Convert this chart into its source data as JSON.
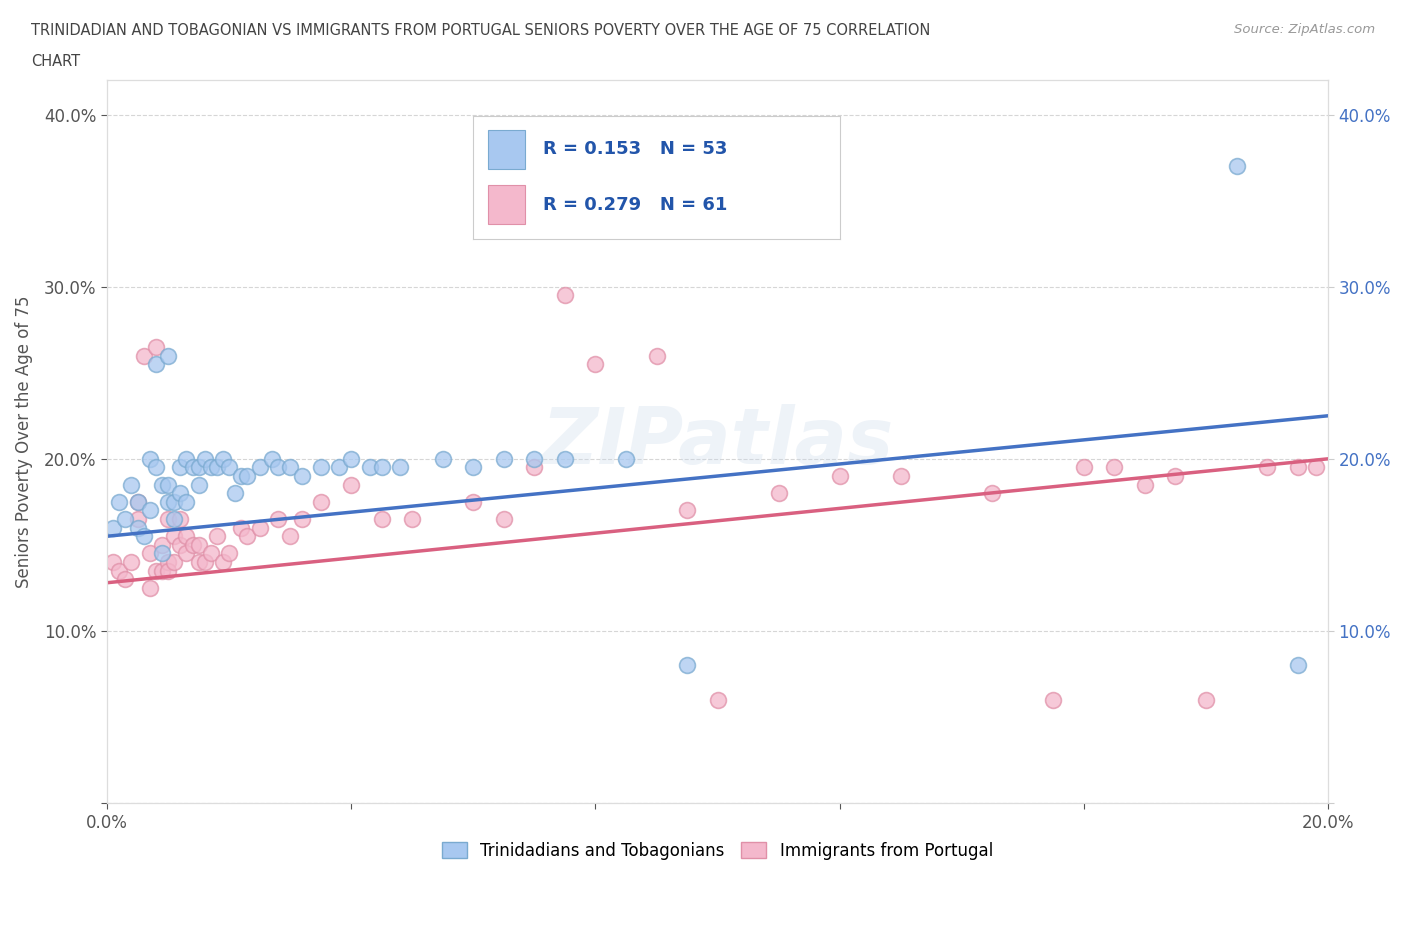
{
  "title_line1": "TRINIDADIAN AND TOBAGONIAN VS IMMIGRANTS FROM PORTUGAL SENIORS POVERTY OVER THE AGE OF 75 CORRELATION",
  "title_line2": "CHART",
  "source": "Source: ZipAtlas.com",
  "ylabel": "Seniors Poverty Over the Age of 75",
  "xlim": [
    0.0,
    0.2
  ],
  "ylim": [
    0.0,
    0.42
  ],
  "legend_R1": "0.153",
  "legend_N1": "53",
  "legend_R2": "0.279",
  "legend_N2": "61",
  "blue_color": "#a8c8f0",
  "blue_edge_color": "#7aaad0",
  "pink_color": "#f4b8cc",
  "pink_edge_color": "#e090a8",
  "blue_line_color": "#4472c4",
  "pink_line_color": "#d96080",
  "grid_color": "#cccccc",
  "background_color": "#ffffff",
  "right_tick_color": "#4472c4",
  "blue_scatter_x": [
    0.001,
    0.002,
    0.003,
    0.004,
    0.005,
    0.005,
    0.006,
    0.007,
    0.007,
    0.008,
    0.008,
    0.009,
    0.009,
    0.01,
    0.01,
    0.01,
    0.011,
    0.011,
    0.012,
    0.012,
    0.013,
    0.013,
    0.014,
    0.015,
    0.015,
    0.016,
    0.017,
    0.018,
    0.019,
    0.02,
    0.021,
    0.022,
    0.023,
    0.025,
    0.027,
    0.028,
    0.03,
    0.032,
    0.035,
    0.038,
    0.04,
    0.043,
    0.045,
    0.048,
    0.055,
    0.06,
    0.065,
    0.07,
    0.075,
    0.085,
    0.095,
    0.185,
    0.195
  ],
  "blue_scatter_y": [
    0.16,
    0.175,
    0.165,
    0.185,
    0.175,
    0.16,
    0.155,
    0.17,
    0.2,
    0.195,
    0.255,
    0.145,
    0.185,
    0.26,
    0.185,
    0.175,
    0.175,
    0.165,
    0.195,
    0.18,
    0.175,
    0.2,
    0.195,
    0.195,
    0.185,
    0.2,
    0.195,
    0.195,
    0.2,
    0.195,
    0.18,
    0.19,
    0.19,
    0.195,
    0.2,
    0.195,
    0.195,
    0.19,
    0.195,
    0.195,
    0.2,
    0.195,
    0.195,
    0.195,
    0.2,
    0.195,
    0.2,
    0.2,
    0.2,
    0.2,
    0.08,
    0.37,
    0.08
  ],
  "pink_scatter_x": [
    0.001,
    0.002,
    0.003,
    0.004,
    0.005,
    0.005,
    0.006,
    0.007,
    0.007,
    0.008,
    0.008,
    0.009,
    0.009,
    0.01,
    0.01,
    0.01,
    0.011,
    0.011,
    0.012,
    0.012,
    0.013,
    0.013,
    0.014,
    0.015,
    0.015,
    0.016,
    0.017,
    0.018,
    0.019,
    0.02,
    0.022,
    0.023,
    0.025,
    0.028,
    0.03,
    0.032,
    0.035,
    0.04,
    0.045,
    0.05,
    0.06,
    0.065,
    0.07,
    0.075,
    0.08,
    0.09,
    0.095,
    0.1,
    0.11,
    0.12,
    0.13,
    0.145,
    0.155,
    0.16,
    0.165,
    0.17,
    0.175,
    0.18,
    0.19,
    0.195,
    0.198
  ],
  "pink_scatter_y": [
    0.14,
    0.135,
    0.13,
    0.14,
    0.175,
    0.165,
    0.26,
    0.125,
    0.145,
    0.135,
    0.265,
    0.15,
    0.135,
    0.14,
    0.135,
    0.165,
    0.155,
    0.14,
    0.15,
    0.165,
    0.155,
    0.145,
    0.15,
    0.14,
    0.15,
    0.14,
    0.145,
    0.155,
    0.14,
    0.145,
    0.16,
    0.155,
    0.16,
    0.165,
    0.155,
    0.165,
    0.175,
    0.185,
    0.165,
    0.165,
    0.175,
    0.165,
    0.195,
    0.295,
    0.255,
    0.26,
    0.17,
    0.06,
    0.18,
    0.19,
    0.19,
    0.18,
    0.06,
    0.195,
    0.195,
    0.185,
    0.19,
    0.06,
    0.195,
    0.195,
    0.195
  ],
  "blue_line_x0": 0.0,
  "blue_line_y0": 0.155,
  "blue_line_x1": 0.2,
  "blue_line_y1": 0.225,
  "pink_line_x0": 0.0,
  "pink_line_y0": 0.128,
  "pink_line_x1": 0.2,
  "pink_line_y1": 0.2
}
